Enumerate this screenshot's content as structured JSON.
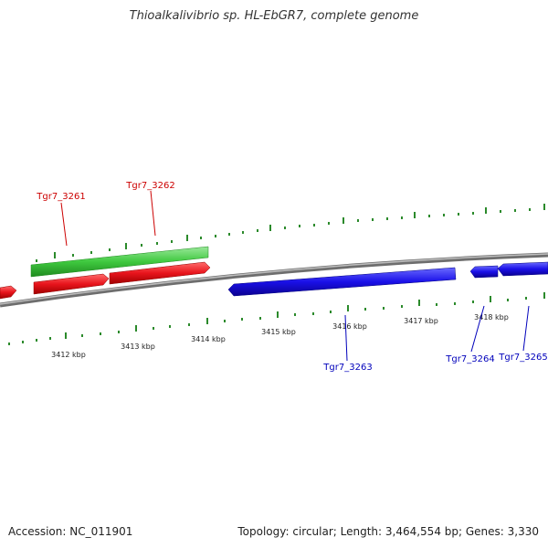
{
  "title": "Thioalkalivibrio sp. HL-EbGR7, complete genome",
  "footer": {
    "accession": "Accession: NC_011901",
    "summary": "Topology: circular; Length: 3,464,554 bp; Genes: 3,330"
  },
  "scale_labels": [
    "3412 kbp",
    "3413 kbp",
    "3414 kbp",
    "3415 kbp",
    "3416 kbp",
    "3417 kbp",
    "3418 kbp"
  ],
  "genes": [
    {
      "id": "Tgr7_3261",
      "color": "#cc0000"
    },
    {
      "id": "Tgr7_3262",
      "color": "#cc0000"
    },
    {
      "id": "Tgr7_3263",
      "color": "#0000bb"
    },
    {
      "id": "Tgr7_3264",
      "color": "#0000bb"
    },
    {
      "id": "Tgr7_3265",
      "color": "#0000bb"
    }
  ],
  "colors": {
    "forward_cds": "#e8141c",
    "reverse_cds": "#1a10e8",
    "rna_feature": "#3fc93f",
    "backbone": "#8a8a8a",
    "ticks": "#2b8a2b"
  }
}
